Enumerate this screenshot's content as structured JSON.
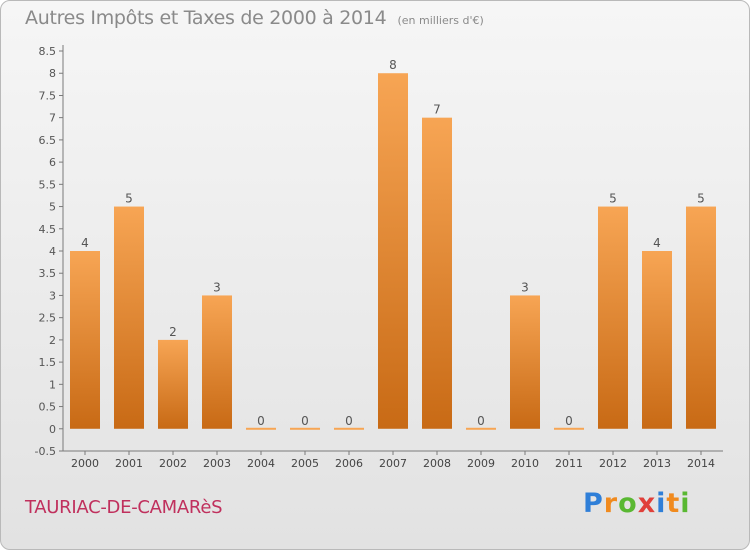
{
  "title": "Autres Impôts et Taxes de 2000 à 2014",
  "unit": "(en milliers d'€)",
  "commune": "TAURIAC-DE-CAMARèS",
  "logo": {
    "text": "Proxiti",
    "letters": [
      "P",
      "r",
      "o",
      "x",
      "i",
      "t",
      "i"
    ],
    "colors": [
      "#2f7fd8",
      "#f08a1e",
      "#59b832",
      "#e0403a",
      "#2f7fd8",
      "#f08a1e",
      "#59b832"
    ]
  },
  "colors": {
    "bar_top": "#f7a554",
    "bar_bottom": "#c86a15",
    "title": "#8a8a8a",
    "commune": "#c0305d"
  },
  "chart_data": {
    "type": "bar",
    "categories": [
      "2000",
      "2001",
      "2002",
      "2003",
      "2004",
      "2005",
      "2006",
      "2007",
      "2008",
      "2009",
      "2010",
      "2011",
      "2012",
      "2013",
      "2014"
    ],
    "values": [
      4,
      5,
      2,
      3,
      0,
      0,
      0,
      8,
      7,
      0,
      3,
      0,
      5,
      4,
      5
    ],
    "ylim": [
      -0.5,
      8.5
    ],
    "yticks": [
      "-0.5",
      "0",
      "0.5",
      "1",
      "1.5",
      "2",
      "2.5",
      "3",
      "3.5",
      "4",
      "4.5",
      "5",
      "5.5",
      "6",
      "6.5",
      "7",
      "7.5",
      "8",
      "8.5"
    ],
    "grid": false
  }
}
